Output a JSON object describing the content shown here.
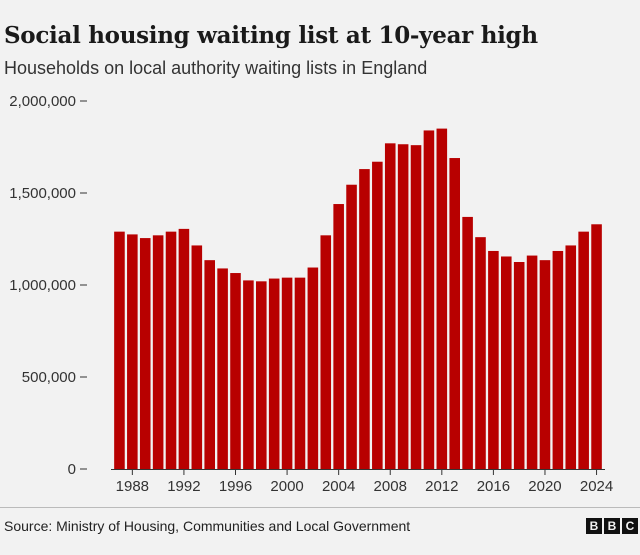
{
  "chart_data": {
    "type": "bar",
    "title": "Social housing waiting list at 10-year high",
    "subtitle": "Households on local authority waiting lists in England",
    "categories": [
      "1987",
      "1988",
      "1989",
      "1990",
      "1991",
      "1992",
      "1993",
      "1994",
      "1995",
      "1996",
      "1997",
      "1998",
      "1999",
      "2000",
      "2001",
      "2002",
      "2003",
      "2004",
      "2005",
      "2006",
      "2007",
      "2008",
      "2009",
      "2010",
      "2011",
      "2012",
      "2013",
      "2014",
      "2015",
      "2016",
      "2017",
      "2018",
      "2019",
      "2020",
      "2021",
      "2022",
      "2023",
      "2024"
    ],
    "values": [
      1290000,
      1275000,
      1255000,
      1270000,
      1290000,
      1305000,
      1215000,
      1135000,
      1090000,
      1065000,
      1025000,
      1020000,
      1035000,
      1040000,
      1040000,
      1095000,
      1270000,
      1440000,
      1545000,
      1630000,
      1670000,
      1770000,
      1765000,
      1760000,
      1840000,
      1850000,
      1690000,
      1370000,
      1260000,
      1185000,
      1155000,
      1125000,
      1160000,
      1135000,
      1185000,
      1215000,
      1290000,
      1330000
    ],
    "x_tick_labels": [
      "1988",
      "1992",
      "1996",
      "2000",
      "2004",
      "2008",
      "2012",
      "2016",
      "2020",
      "2024"
    ],
    "y_ticks": [
      "0",
      "500,000",
      "1,000,000",
      "1,500,000",
      "2,000,000"
    ],
    "y_tick_values": [
      0,
      500000,
      1000000,
      1500000,
      2000000
    ],
    "ylim": [
      0,
      2000000
    ],
    "bar_color": "#b80000",
    "source": "Source: Ministry of Housing, Communities and Local Government",
    "logo_letters": [
      "B",
      "B",
      "C"
    ]
  }
}
